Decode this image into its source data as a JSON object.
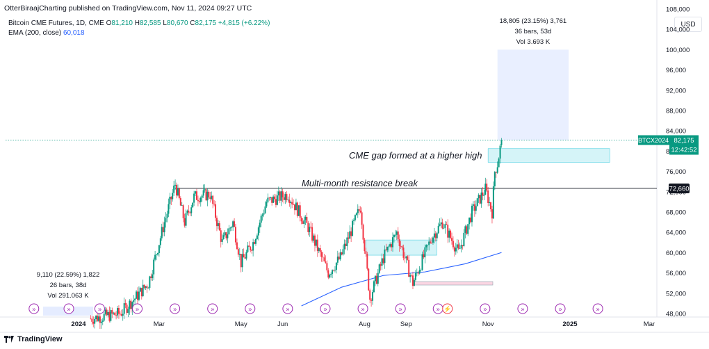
{
  "header": {
    "publisher": "OtterBiraajCharting published on TradingView.com, Nov 11, 2024 09:27 UTC"
  },
  "legend": {
    "symbol": "Bitcoin CME Futures, 1D, CME",
    "o_label": "O",
    "o": "81,210",
    "h_label": "H",
    "h": "82,585",
    "l_label": "L",
    "l": "80,670",
    "c_label": "C",
    "c": "82,175",
    "change": "+4,815 (+6.22%)",
    "ema_label": "EMA (200, close)",
    "ema_value": "60,018"
  },
  "currency": "USD",
  "footer": {
    "brand": "TradingView",
    "logo_icon": "tradingview-logo-icon"
  },
  "colors": {
    "up": "#089981",
    "down": "#f23645",
    "ema": "#2962ff",
    "accent": "#089981"
  },
  "chart_data": {
    "type": "candlestick",
    "symbol": "BTCX2024",
    "y_ticks": [
      "48,000",
      "52,000",
      "56,000",
      "60,000",
      "64,000",
      "68,000",
      "72,000",
      "76,000",
      "80,000",
      "84,000",
      "88,000",
      "92,000",
      "96,000",
      "100,000",
      "104,000",
      "108,000"
    ],
    "x_ticks": [
      "2024",
      "Mar",
      "May",
      "Jun",
      "Aug",
      "Sep",
      "Nov",
      "2025",
      "Mar"
    ],
    "ylim": [
      48000,
      108000
    ],
    "last_price_label": "82,175",
    "last_price": 82175,
    "countdown": "12:42:52",
    "resistance_label": "72,660",
    "resistance": 72660,
    "ema_series": [
      {
        "date": "2024-06-15",
        "value": 49500
      },
      {
        "date": "2024-07-15",
        "value": 53200
      },
      {
        "date": "2024-08-15",
        "value": 55500
      },
      {
        "date": "2024-09-15",
        "value": 56200
      },
      {
        "date": "2024-10-15",
        "value": 57800
      },
      {
        "date": "2024-11-11",
        "value": 60018
      }
    ],
    "candles_anchor": [
      {
        "date": "2024-01-10",
        "value": 47000
      },
      {
        "date": "2024-02-01",
        "value": 48000
      },
      {
        "date": "2024-02-12",
        "value": 51000
      },
      {
        "date": "2024-02-22",
        "value": 54000
      },
      {
        "date": "2024-03-05",
        "value": 66000
      },
      {
        "date": "2024-03-13",
        "value": 73500
      },
      {
        "date": "2024-03-20",
        "value": 66000
      },
      {
        "date": "2024-03-27",
        "value": 71000
      },
      {
        "date": "2024-04-08",
        "value": 71500
      },
      {
        "date": "2024-04-17",
        "value": 62000
      },
      {
        "date": "2024-04-25",
        "value": 66000
      },
      {
        "date": "2024-05-01",
        "value": 58000
      },
      {
        "date": "2024-05-10",
        "value": 62000
      },
      {
        "date": "2024-05-20",
        "value": 70000
      },
      {
        "date": "2024-06-05",
        "value": 71500
      },
      {
        "date": "2024-06-20",
        "value": 65000
      },
      {
        "date": "2024-07-05",
        "value": 56000
      },
      {
        "date": "2024-07-14",
        "value": 59000
      },
      {
        "date": "2024-07-29",
        "value": 69000
      },
      {
        "date": "2024-08-05",
        "value": 51000
      },
      {
        "date": "2024-08-15",
        "value": 59000
      },
      {
        "date": "2024-08-25",
        "value": 64000
      },
      {
        "date": "2024-09-06",
        "value": 54000
      },
      {
        "date": "2024-09-20",
        "value": 63000
      },
      {
        "date": "2024-09-28",
        "value": 66000
      },
      {
        "date": "2024-10-10",
        "value": 60000
      },
      {
        "date": "2024-10-20",
        "value": 68000
      },
      {
        "date": "2024-10-30",
        "value": 72500
      },
      {
        "date": "2024-11-04",
        "value": 68000
      },
      {
        "date": "2024-11-06",
        "value": 76000
      },
      {
        "date": "2024-11-08",
        "value": 77500
      },
      {
        "date": "2024-11-11",
        "value": 82175
      }
    ],
    "measure_top": {
      "text1": "18,805 (23.15%) 3,761",
      "text2": "36 bars, 53d",
      "text3": "Vol 3.693 K",
      "y_from": 82175,
      "y_to": 100000
    },
    "measure_bottom": {
      "text1": "9,110 (22.59%) 1,822",
      "text2": "26 bars, 38d",
      "text3": "Vol 291.063 K"
    },
    "annotations": [
      {
        "text": "CME gap formed at a higher high"
      },
      {
        "text": "Multi-month resistance break"
      }
    ],
    "gap_zone": {
      "y_top": 80500,
      "y_bottom": 77800
    },
    "zones": [
      {
        "y_top": 62500,
        "y_bottom": 59500
      },
      {
        "y_top": 54300,
        "y_bottom": 53800
      }
    ]
  }
}
